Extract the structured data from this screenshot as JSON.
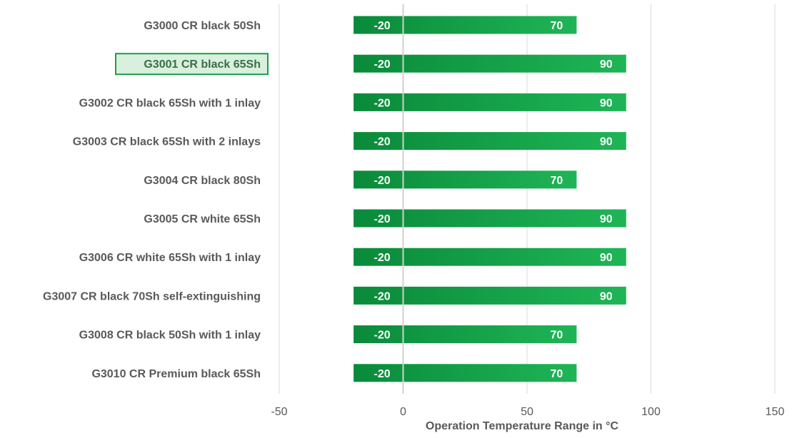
{
  "chart_data": {
    "type": "bar",
    "orientation": "horizontal",
    "subtype": "floating-range",
    "categories": [
      "G3000 CR black 50Sh",
      "G3001 CR black 65Sh",
      "G3002 CR black 65Sh with 1 inlay",
      "G3003 CR black 65Sh with 2 inlays",
      "G3004 CR black 80Sh",
      "G3005 CR white 65Sh",
      "G3006 CR white 65Sh with 1 inlay",
      "G3007 CR black 70Sh self-extinguishing",
      "G3008 CR black 50Sh with 1 inlay",
      "G3010 CR Premium black 65Sh"
    ],
    "series": [
      {
        "min": [
          -20,
          -20,
          -20,
          -20,
          -20,
          -20,
          -20,
          -20,
          -20,
          -20
        ],
        "max": [
          70,
          90,
          90,
          90,
          70,
          90,
          90,
          90,
          70,
          70
        ]
      }
    ],
    "xlabel": "Operation Temperature Range in °C",
    "ylabel": "",
    "title": "",
    "xlim": [
      -50,
      150
    ],
    "xticks": [
      "-50",
      "0",
      "50",
      "100",
      "150"
    ],
    "grid": true,
    "legend": "none",
    "selected_category_index": 1,
    "colors": {
      "bar_dark": "#0a8a3a",
      "bar_light": "#1fb556",
      "bar_label": "#ffffff",
      "category_label": "#595959",
      "gridline": "#d9d9d9",
      "selection_fill": "#d8f0dd",
      "selection_stroke": "#1a9e47"
    }
  }
}
